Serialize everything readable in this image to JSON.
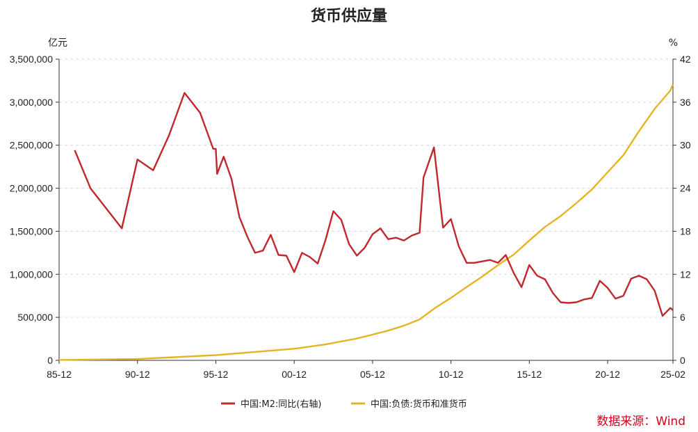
{
  "chart_data": {
    "type": "line",
    "title": "货币供应量",
    "source": "数据来源：Wind",
    "x_tick_labels": [
      "85-12",
      "90-12",
      "95-12",
      "00-12",
      "05-12",
      "10-12",
      "15-12",
      "20-12",
      "25-02"
    ],
    "left_axis": {
      "unit": "亿元",
      "range": [
        0,
        3500000
      ],
      "ticks": [
        "0",
        "500,000",
        "1,000,000",
        "1,500,000",
        "2,000,000",
        "2,500,000",
        "3,000,000",
        "3,500,000"
      ]
    },
    "right_axis": {
      "unit": "%",
      "range": [
        0,
        42
      ],
      "ticks": [
        "0",
        "6",
        "12",
        "18",
        "24",
        "30",
        "36",
        "42"
      ]
    },
    "grid": true,
    "legend_position": "bottom",
    "series": [
      {
        "name": "中国:M2:同比(右轴)",
        "axis": "right",
        "color": "#c1272d",
        "points": [
          [
            "1986-12",
            29.3
          ],
          [
            "1987-12",
            24.0
          ],
          [
            "1989-12",
            18.4
          ],
          [
            "1990-12",
            28.0
          ],
          [
            "1991-12",
            26.5
          ],
          [
            "1992-12",
            31.3
          ],
          [
            "1993-12",
            37.3
          ],
          [
            "1994-12",
            34.5
          ],
          [
            "1995-10",
            29.5
          ],
          [
            "1995-12",
            29.5
          ],
          [
            "1996-01",
            26.0
          ],
          [
            "1996-06",
            28.4
          ],
          [
            "1996-12",
            25.3
          ],
          [
            "1997-06",
            20.0
          ],
          [
            "1997-12",
            17.3
          ],
          [
            "1998-06",
            15.0
          ],
          [
            "1998-12",
            15.3
          ],
          [
            "1999-06",
            17.5
          ],
          [
            "1999-12",
            14.7
          ],
          [
            "2000-06",
            14.6
          ],
          [
            "2000-12",
            12.3
          ],
          [
            "2001-06",
            15.0
          ],
          [
            "2001-12",
            14.4
          ],
          [
            "2002-06",
            13.5
          ],
          [
            "2002-12",
            16.8
          ],
          [
            "2003-06",
            20.8
          ],
          [
            "2003-12",
            19.6
          ],
          [
            "2004-06",
            16.2
          ],
          [
            "2004-12",
            14.6
          ],
          [
            "2005-06",
            15.7
          ],
          [
            "2005-12",
            17.6
          ],
          [
            "2006-06",
            18.4
          ],
          [
            "2006-12",
            16.9
          ],
          [
            "2007-06",
            17.1
          ],
          [
            "2007-12",
            16.7
          ],
          [
            "2008-06",
            17.4
          ],
          [
            "2008-12",
            17.8
          ],
          [
            "2009-03",
            25.5
          ],
          [
            "2009-11",
            29.7
          ],
          [
            "2010-06",
            18.5
          ],
          [
            "2010-12",
            19.7
          ],
          [
            "2011-06",
            15.9
          ],
          [
            "2011-12",
            13.6
          ],
          [
            "2012-06",
            13.6
          ],
          [
            "2012-12",
            13.8
          ],
          [
            "2013-06",
            14.0
          ],
          [
            "2013-12",
            13.6
          ],
          [
            "2014-06",
            14.7
          ],
          [
            "2014-12",
            12.2
          ],
          [
            "2015-06",
            10.2
          ],
          [
            "2015-12",
            13.3
          ],
          [
            "2016-06",
            11.8
          ],
          [
            "2016-12",
            11.3
          ],
          [
            "2017-06",
            9.4
          ],
          [
            "2017-12",
            8.1
          ],
          [
            "2018-06",
            8.0
          ],
          [
            "2018-12",
            8.1
          ],
          [
            "2019-06",
            8.5
          ],
          [
            "2019-12",
            8.7
          ],
          [
            "2020-06",
            11.1
          ],
          [
            "2020-12",
            10.1
          ],
          [
            "2021-06",
            8.6
          ],
          [
            "2021-12",
            9.0
          ],
          [
            "2022-06",
            11.4
          ],
          [
            "2022-12",
            11.8
          ],
          [
            "2023-06",
            11.3
          ],
          [
            "2023-12",
            9.7
          ],
          [
            "2024-06",
            6.2
          ],
          [
            "2024-12",
            7.3
          ],
          [
            "2025-02",
            7.0
          ]
        ]
      },
      {
        "name": "中国:负债:货币和准货币",
        "axis": "left",
        "color": "#e6b422",
        "points": [
          [
            "1985-12",
            5198
          ],
          [
            "1990-12",
            15293
          ],
          [
            "1995-12",
            60751
          ],
          [
            "2000-12",
            134610
          ],
          [
            "2002-12",
            185007
          ],
          [
            "2004-12",
            254107
          ],
          [
            "2005-12",
            298756
          ],
          [
            "2006-12",
            345578
          ],
          [
            "2007-12",
            403442
          ],
          [
            "2008-12",
            475167
          ],
          [
            "2009-12",
            610225
          ],
          [
            "2010-12",
            725852
          ],
          [
            "2011-12",
            851591
          ],
          [
            "2012-12",
            974149
          ],
          [
            "2013-12",
            1106525
          ],
          [
            "2014-12",
            1228375
          ],
          [
            "2015-12",
            1392278
          ],
          [
            "2016-12",
            1550067
          ],
          [
            "2017-12",
            1676769
          ],
          [
            "2018-12",
            1826744
          ],
          [
            "2019-12",
            1986489
          ],
          [
            "2020-12",
            2186796
          ],
          [
            "2021-12",
            2382899
          ],
          [
            "2022-12",
            2664321
          ],
          [
            "2023-12",
            2922713
          ],
          [
            "2024-12",
            3135822
          ],
          [
            "2025-02",
            3207900
          ]
        ]
      }
    ]
  }
}
